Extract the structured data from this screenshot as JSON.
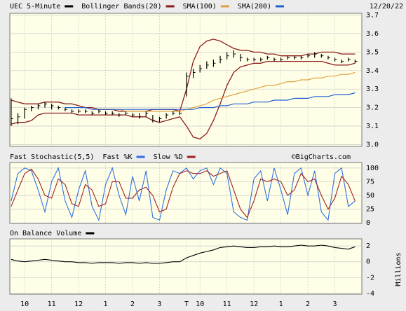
{
  "chart_data": [
    {
      "type": "ohlc",
      "name": "UEC 5-Minute",
      "color": "#000000",
      "date": "12/20/22",
      "x": [
        0,
        15,
        30,
        45,
        60,
        75,
        90,
        105,
        120,
        135,
        150,
        165,
        180,
        195,
        210,
        225,
        240,
        255,
        270,
        285,
        300,
        315,
        330,
        345,
        360,
        375,
        390,
        405,
        420,
        435,
        450,
        465,
        480,
        495,
        510,
        525,
        540,
        555,
        570,
        585,
        600,
        615,
        630,
        645,
        660,
        675,
        690,
        705,
        720,
        735,
        750,
        765
      ],
      "xlim": [
        -3,
        780
      ],
      "high": [
        3.25,
        3.17,
        3.2,
        3.21,
        3.22,
        3.23,
        3.22,
        3.21,
        3.2,
        3.19,
        3.19,
        3.19,
        3.18,
        3.19,
        3.18,
        3.18,
        3.17,
        3.18,
        3.17,
        3.17,
        3.18,
        3.16,
        3.15,
        3.17,
        3.18,
        3.18,
        3.39,
        3.41,
        3.43,
        3.45,
        3.46,
        3.48,
        3.5,
        3.51,
        3.49,
        3.47,
        3.47,
        3.47,
        3.48,
        3.47,
        3.47,
        3.48,
        3.48,
        3.48,
        3.49,
        3.5,
        3.49,
        3.48,
        3.47,
        3.46,
        3.47,
        3.46
      ],
      "low": [
        3.1,
        3.11,
        3.14,
        3.18,
        3.19,
        3.2,
        3.19,
        3.19,
        3.18,
        3.17,
        3.17,
        3.17,
        3.16,
        3.17,
        3.16,
        3.16,
        3.15,
        3.16,
        3.15,
        3.14,
        3.15,
        3.12,
        3.12,
        3.14,
        3.16,
        3.16,
        3.26,
        3.36,
        3.39,
        3.41,
        3.42,
        3.44,
        3.46,
        3.47,
        3.45,
        3.45,
        3.45,
        3.45,
        3.46,
        3.45,
        3.45,
        3.46,
        3.46,
        3.46,
        3.47,
        3.47,
        3.47,
        3.46,
        3.45,
        3.44,
        3.45,
        3.44
      ],
      "close": [
        3.14,
        3.15,
        3.19,
        3.2,
        3.21,
        3.22,
        3.21,
        3.2,
        3.19,
        3.18,
        3.18,
        3.18,
        3.17,
        3.18,
        3.17,
        3.17,
        3.16,
        3.17,
        3.16,
        3.15,
        3.17,
        3.13,
        3.14,
        3.16,
        3.17,
        3.17,
        3.37,
        3.39,
        3.41,
        3.43,
        3.44,
        3.46,
        3.48,
        3.49,
        3.47,
        3.46,
        3.46,
        3.46,
        3.47,
        3.46,
        3.46,
        3.47,
        3.47,
        3.47,
        3.48,
        3.49,
        3.48,
        3.47,
        3.46,
        3.45,
        3.46,
        3.45
      ],
      "overlays": [
        {
          "name": "Bollinger Bands(20)",
          "color": "#8b1a1a",
          "upper": [
            3.24,
            3.23,
            3.22,
            3.22,
            3.22,
            3.23,
            3.23,
            3.23,
            3.22,
            3.22,
            3.21,
            3.2,
            3.2,
            3.19,
            3.19,
            3.19,
            3.18,
            3.18,
            3.18,
            3.18,
            3.18,
            3.19,
            3.19,
            3.19,
            3.19,
            3.18,
            3.3,
            3.45,
            3.53,
            3.56,
            3.57,
            3.56,
            3.54,
            3.52,
            3.51,
            3.51,
            3.5,
            3.5,
            3.49,
            3.49,
            3.48,
            3.48,
            3.48,
            3.48,
            3.49,
            3.49,
            3.5,
            3.5,
            3.5,
            3.49,
            3.49,
            3.49
          ],
          "lower": [
            3.11,
            3.12,
            3.12,
            3.13,
            3.16,
            3.17,
            3.17,
            3.17,
            3.17,
            3.17,
            3.16,
            3.16,
            3.16,
            3.16,
            3.16,
            3.16,
            3.16,
            3.16,
            3.15,
            3.15,
            3.15,
            3.13,
            3.12,
            3.13,
            3.14,
            3.15,
            3.1,
            3.04,
            3.03,
            3.06,
            3.13,
            3.22,
            3.32,
            3.39,
            3.42,
            3.43,
            3.44,
            3.44,
            3.45,
            3.45,
            3.45,
            3.45,
            3.45,
            3.45,
            3.45,
            3.45,
            3.45,
            3.44,
            3.43,
            3.43,
            3.43,
            3.44
          ]
        },
        {
          "name": "SMA(100)",
          "color": "#e0a040",
          "values": [
            null,
            null,
            null,
            null,
            null,
            null,
            null,
            null,
            null,
            null,
            null,
            null,
            null,
            null,
            null,
            3.19,
            3.19,
            3.18,
            3.18,
            3.18,
            3.18,
            3.18,
            3.18,
            3.18,
            3.18,
            3.18,
            3.19,
            3.2,
            3.21,
            3.22,
            3.24,
            3.25,
            3.26,
            3.27,
            3.28,
            3.29,
            3.3,
            3.31,
            3.32,
            3.32,
            3.33,
            3.34,
            3.34,
            3.35,
            3.35,
            3.36,
            3.36,
            3.37,
            3.37,
            3.38,
            3.38,
            3.39
          ]
        },
        {
          "name": "SMA(200)",
          "color": "#2060d0",
          "values": [
            null,
            null,
            null,
            null,
            null,
            null,
            null,
            null,
            3.2,
            3.2,
            3.2,
            3.2,
            3.19,
            3.19,
            3.19,
            3.19,
            3.19,
            3.19,
            3.19,
            3.19,
            3.19,
            3.19,
            3.19,
            3.19,
            3.19,
            3.19,
            3.19,
            3.19,
            3.2,
            3.2,
            3.2,
            3.21,
            3.21,
            3.22,
            3.22,
            3.22,
            3.23,
            3.23,
            3.23,
            3.24,
            3.24,
            3.24,
            3.25,
            3.25,
            3.25,
            3.26,
            3.26,
            3.26,
            3.27,
            3.27,
            3.27,
            3.28
          ]
        }
      ],
      "ylim": [
        2.99,
        3.71
      ],
      "yticks": [
        {
          "value": 3,
          "label": "3.0"
        },
        3.1,
        3.2,
        3.3,
        3.4,
        3.5,
        3.6,
        3.7
      ]
    },
    {
      "type": "line",
      "title": "Fast Stochastic(5,5)",
      "annotation": "©BigCharts.com",
      "series": [
        {
          "name": "Fast %K",
          "color": "#3070e0",
          "values": [
            40,
            90,
            100,
            95,
            60,
            20,
            75,
            100,
            40,
            10,
            60,
            95,
            30,
            5,
            70,
            100,
            50,
            15,
            85,
            40,
            95,
            10,
            5,
            60,
            95,
            90,
            100,
            80,
            95,
            100,
            70,
            100,
            90,
            20,
            10,
            5,
            80,
            95,
            40,
            100,
            60,
            15,
            90,
            100,
            50,
            95,
            20,
            5,
            90,
            100,
            30,
            40
          ]
        },
        {
          "name": "Slow %D",
          "color": "#a02020",
          "values": [
            30,
            60,
            90,
            98,
            80,
            50,
            45,
            80,
            70,
            35,
            30,
            70,
            60,
            30,
            35,
            75,
            75,
            45,
            45,
            60,
            65,
            50,
            20,
            25,
            65,
            90,
            95,
            90,
            90,
            95,
            85,
            90,
            95,
            60,
            25,
            10,
            40,
            80,
            75,
            80,
            75,
            50,
            60,
            90,
            75,
            80,
            50,
            25,
            45,
            85,
            70,
            40
          ]
        }
      ],
      "ylim": [
        -1,
        110
      ],
      "yticks": [
        0,
        25,
        50,
        75,
        100
      ]
    },
    {
      "type": "line",
      "ylabel": "Millions",
      "series": [
        {
          "name": "On Balance Volume",
          "color": "#000000",
          "values": [
            0.3,
            0.1,
            0.0,
            0.1,
            0.2,
            0.3,
            0.2,
            0.1,
            0.0,
            0.0,
            -0.1,
            -0.1,
            -0.2,
            -0.1,
            -0.1,
            -0.1,
            -0.2,
            -0.1,
            -0.1,
            -0.2,
            -0.1,
            -0.2,
            -0.2,
            -0.1,
            0.0,
            0.0,
            0.5,
            0.8,
            1.1,
            1.3,
            1.5,
            1.8,
            1.9,
            2.0,
            1.9,
            1.8,
            1.8,
            1.9,
            1.9,
            2.0,
            1.9,
            1.9,
            2.0,
            2.1,
            2.0,
            2.0,
            2.1,
            2.0,
            1.8,
            1.7,
            1.6,
            1.9
          ]
        }
      ],
      "ylim": [
        -4.1,
        2.9
      ],
      "yticks": [
        -4,
        -2,
        0,
        2
      ],
      "xticks": [
        {
          "value": 30,
          "label": "10"
        },
        {
          "value": 90,
          "label": "11"
        },
        {
          "value": 150,
          "label": "12"
        },
        {
          "value": 210,
          "label": "1"
        },
        {
          "value": 270,
          "label": "2"
        },
        {
          "value": 330,
          "label": "3"
        },
        {
          "value": 390,
          "label": "T"
        },
        {
          "value": 420,
          "label": "10"
        },
        {
          "value": 480,
          "label": "11"
        },
        {
          "value": 540,
          "label": "12"
        },
        {
          "value": 600,
          "label": "1"
        },
        {
          "value": 660,
          "label": "2"
        },
        {
          "value": 720,
          "label": "3"
        }
      ]
    }
  ]
}
